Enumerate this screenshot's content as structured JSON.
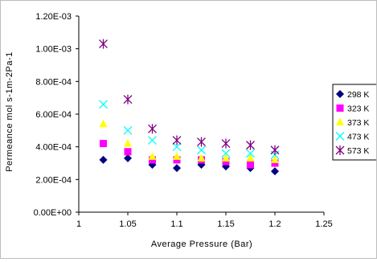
{
  "chart_data": {
    "type": "scatter",
    "xlabel": "Average Pressure (Bar)",
    "ylabel": "Permeance mol s-1m-2Pa-1",
    "xlim": [
      1,
      1.25
    ],
    "ylim": [
      0,
      0.0012
    ],
    "x_ticks": [
      1,
      1.05,
      1.1,
      1.15,
      1.2,
      1.25
    ],
    "x_tick_labels": [
      "1",
      "1.05",
      "1.1",
      "1.15",
      "1.2",
      "1.25"
    ],
    "y_ticks": [
      0,
      0.0002,
      0.0004,
      0.0006,
      0.0008,
      0.001,
      0.0012
    ],
    "y_tick_labels": [
      "0.00E+00",
      "2.00E-04",
      "4.00E-04",
      "6.00E-04",
      "8.00E-04",
      "1.00E-03",
      "1.20E-03"
    ],
    "grid": false,
    "legend_position": "right",
    "series": [
      {
        "name": "298 K",
        "marker": "diamond",
        "color": "#000080",
        "x": [
          1.025,
          1.05,
          1.075,
          1.1,
          1.125,
          1.15,
          1.175,
          1.2
        ],
        "y": [
          0.00032,
          0.00033,
          0.00029,
          0.00027,
          0.00029,
          0.00028,
          0.00027,
          0.00025
        ]
      },
      {
        "name": "323 K",
        "marker": "square",
        "color": "#ff00ff",
        "x": [
          1.025,
          1.05,
          1.075,
          1.1,
          1.125,
          1.15,
          1.175,
          1.2
        ],
        "y": [
          0.00042,
          0.00037,
          0.00032,
          0.00032,
          0.00032,
          0.00031,
          0.00029,
          0.0003
        ]
      },
      {
        "name": "373 K",
        "marker": "triangle",
        "color": "#ffff00",
        "x": [
          1.025,
          1.05,
          1.075,
          1.1,
          1.125,
          1.15,
          1.175,
          1.2
        ],
        "y": [
          0.00054,
          0.00042,
          0.00034,
          0.00034,
          0.00033,
          0.00033,
          0.00033,
          0.00032
        ]
      },
      {
        "name": "473 K",
        "marker": "x",
        "color": "#00ffff",
        "x": [
          1.025,
          1.05,
          1.075,
          1.1,
          1.125,
          1.15,
          1.175,
          1.2
        ],
        "y": [
          0.00066,
          0.0005,
          0.00044,
          0.0004,
          0.00038,
          0.00036,
          0.00036,
          0.00035
        ]
      },
      {
        "name": "573 K",
        "marker": "star",
        "color": "#800080",
        "x": [
          1.025,
          1.05,
          1.075,
          1.1,
          1.125,
          1.15,
          1.175,
          1.2
        ],
        "y": [
          0.00103,
          0.00069,
          0.00051,
          0.00044,
          0.00043,
          0.00042,
          0.00041,
          0.00038
        ]
      }
    ]
  }
}
